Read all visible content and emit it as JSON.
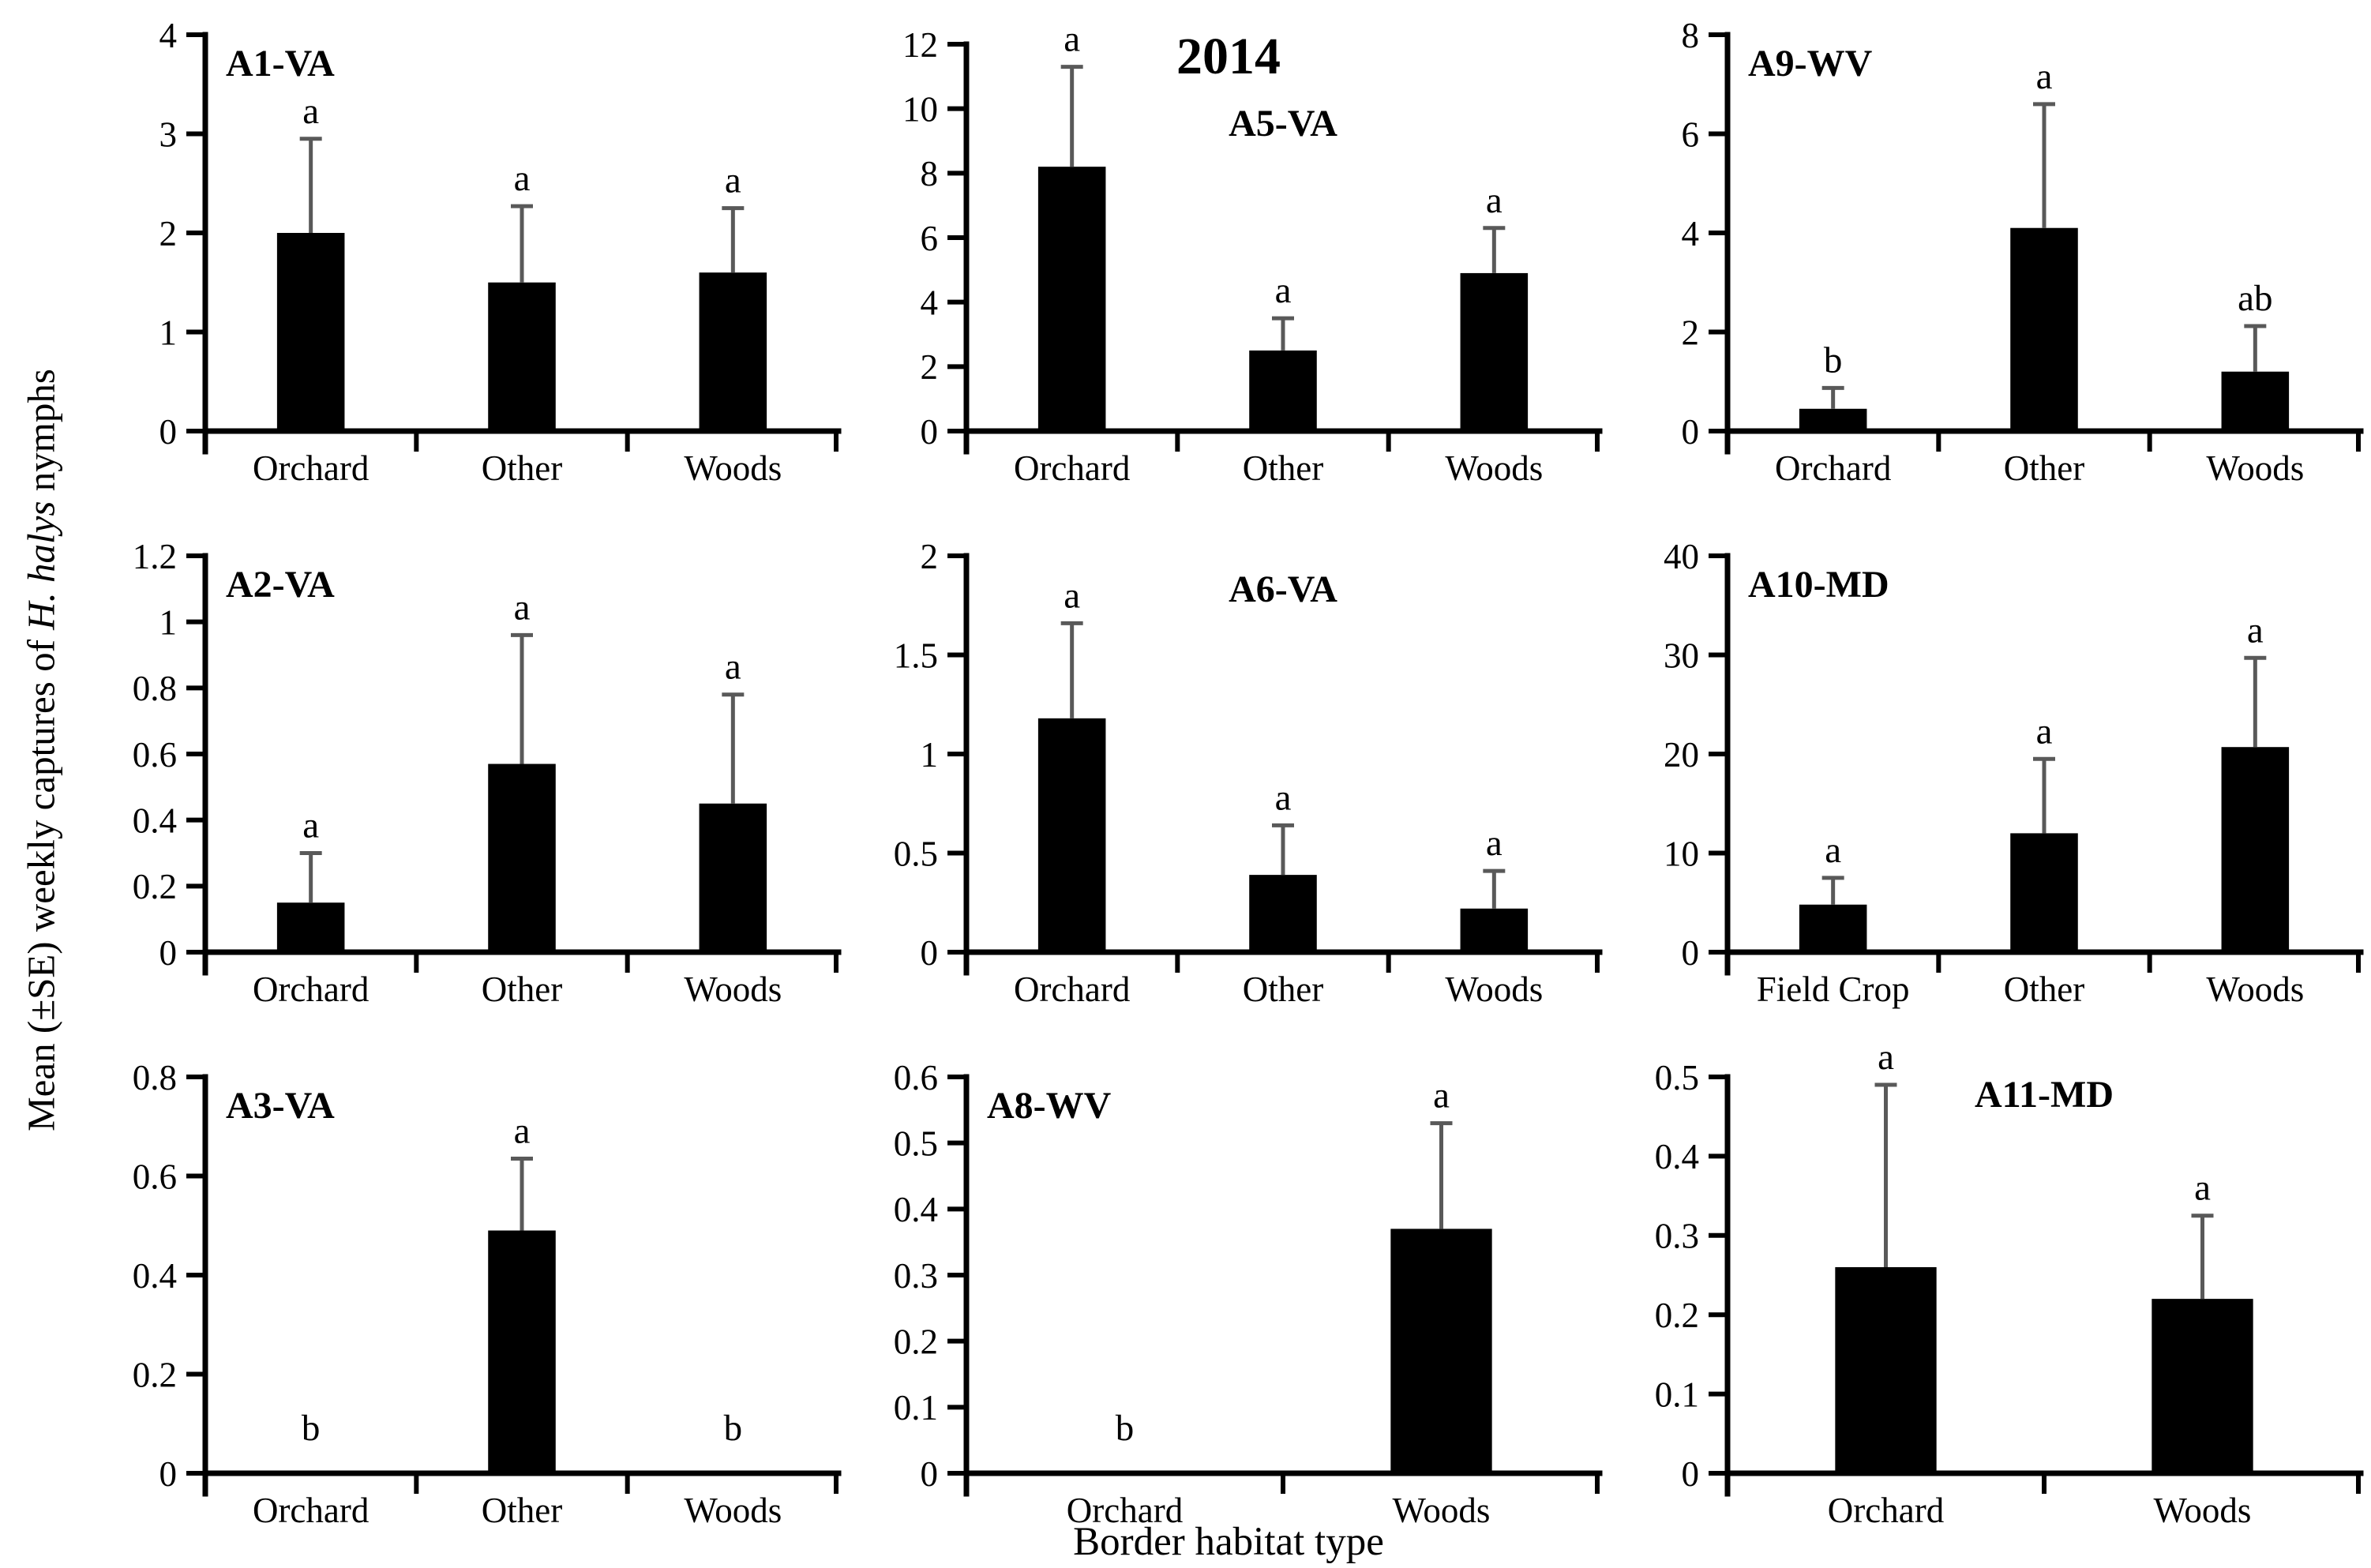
{
  "title": "2014",
  "xlabel": "Border habitat type",
  "ylabel": {
    "prefix": "Mean (±SE) weekly captures of ",
    "italic": "H. halys",
    "suffix": " nymphs"
  },
  "colors": {
    "bar": "#000000",
    "error_bar": "#595959",
    "axis": "#000000"
  },
  "chart_data": [
    {
      "type": "bar",
      "site": "A1-VA",
      "title_pos": "left",
      "title_y": 94,
      "ylim": [
        0,
        4
      ],
      "ytick_labels": [
        "0",
        "1",
        "2",
        "3",
        "4"
      ],
      "categories": [
        "Orchard",
        "Other",
        "Woods"
      ],
      "values": [
        2.0,
        1.5,
        1.6
      ],
      "se": [
        0.95,
        0.77,
        0.65
      ],
      "letters": [
        "a",
        "a",
        "a"
      ]
    },
    {
      "type": "bar",
      "site": "A5-VA",
      "title_pos": "center",
      "title_y": 170,
      "top_extra": 12,
      "ylim": [
        0,
        12
      ],
      "ytick_labels": [
        "0",
        "2",
        "4",
        "6",
        "8",
        "10",
        "12"
      ],
      "categories": [
        "Orchard",
        "Other",
        "Woods"
      ],
      "values": [
        8.2,
        2.5,
        4.9
      ],
      "se": [
        3.1,
        1.0,
        1.4
      ],
      "letters": [
        "a",
        "a",
        "a"
      ]
    },
    {
      "type": "bar",
      "site": "A9-WV",
      "title_pos": "left",
      "title_y": 94,
      "ylim": [
        0,
        8
      ],
      "ytick_labels": [
        "0",
        "2",
        "4",
        "6",
        "8"
      ],
      "categories": [
        "Orchard",
        "Other",
        "Woods"
      ],
      "values": [
        0.45,
        4.1,
        1.2
      ],
      "se": [
        0.42,
        2.5,
        0.92
      ],
      "letters": [
        "b",
        "a",
        "ab"
      ]
    },
    {
      "type": "bar",
      "site": "A2-VA",
      "title_pos": "left",
      "title_y": 94,
      "ylim": [
        0,
        1.2
      ],
      "ytick_labels": [
        "0",
        "0.2",
        "0.4",
        "0.6",
        "0.8",
        "1",
        "1.2"
      ],
      "categories": [
        "Orchard",
        "Other",
        "Woods"
      ],
      "values": [
        0.15,
        0.57,
        0.45
      ],
      "se": [
        0.15,
        0.39,
        0.33
      ],
      "letters": [
        "a",
        "a",
        "a"
      ]
    },
    {
      "type": "bar",
      "site": "A6-VA",
      "title_pos": "center",
      "title_y": 100,
      "ylim": [
        0,
        2
      ],
      "ytick_labels": [
        "0",
        "0.5",
        "1",
        "1.5",
        "2"
      ],
      "categories": [
        "Orchard",
        "Other",
        "Woods"
      ],
      "values": [
        1.18,
        0.39,
        0.22
      ],
      "se": [
        0.48,
        0.25,
        0.19
      ],
      "letters": [
        "a",
        "a",
        "a"
      ]
    },
    {
      "type": "bar",
      "site": "A10-MD",
      "title_pos": "left",
      "title_y": 94,
      "ylim": [
        0,
        40
      ],
      "ytick_labels": [
        "0",
        "10",
        "20",
        "30",
        "40"
      ],
      "categories": [
        "Field Crop",
        "Other",
        "Woods"
      ],
      "values": [
        4.8,
        12.0,
        20.7
      ],
      "se": [
        2.7,
        7.5,
        9.0
      ],
      "letters": [
        "a",
        "a",
        "a"
      ]
    },
    {
      "type": "bar",
      "site": "A3-VA",
      "title_pos": "left",
      "title_y": 94,
      "ylim": [
        0,
        0.8
      ],
      "ytick_labels": [
        "0",
        "0.2",
        "0.4",
        "0.6",
        "0.8"
      ],
      "categories": [
        "Orchard",
        "Other",
        "Woods"
      ],
      "values": [
        0,
        0.49,
        0
      ],
      "se": [
        0,
        0.145,
        0
      ],
      "letters": [
        "b",
        "a",
        "b"
      ]
    },
    {
      "type": "bar",
      "site": "A8-WV",
      "title_pos": "left",
      "title_y": 94,
      "ylim": [
        0,
        0.6
      ],
      "ytick_labels": [
        "0",
        "0.1",
        "0.2",
        "0.3",
        "0.4",
        "0.5",
        "0.6"
      ],
      "categories": [
        "Orchard",
        "Woods"
      ],
      "values": [
        0,
        0.37
      ],
      "se": [
        0,
        0.16
      ],
      "letters": [
        "b",
        "a"
      ]
    },
    {
      "type": "bar",
      "site": "A11-MD",
      "title_pos": "center",
      "title_y": 80,
      "ylim": [
        0,
        0.5
      ],
      "ytick_labels": [
        "0",
        "0.1",
        "0.2",
        "0.3",
        "0.4",
        "0.5"
      ],
      "categories": [
        "Orchard",
        "Woods"
      ],
      "values": [
        0.26,
        0.22
      ],
      "se": [
        0.23,
        0.105
      ],
      "letters": [
        "a",
        "a"
      ]
    }
  ]
}
